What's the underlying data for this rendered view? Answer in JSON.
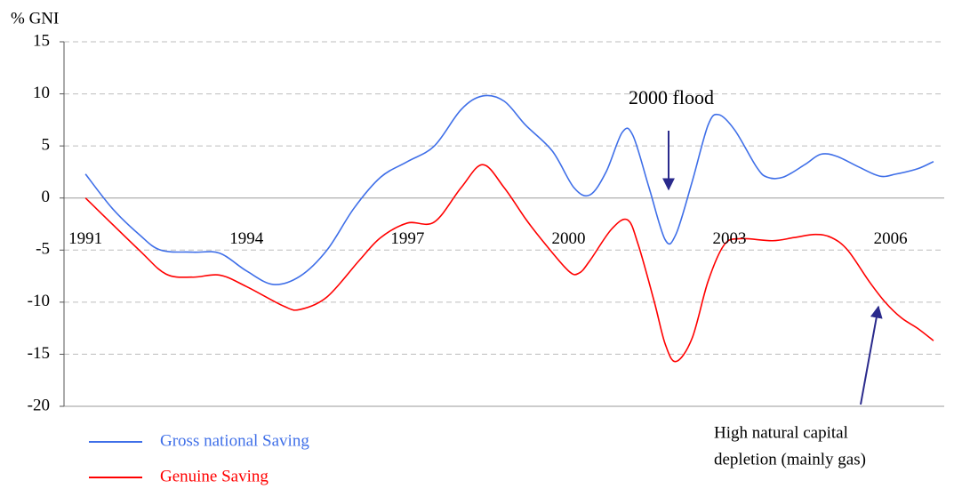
{
  "chart_data": {
    "type": "line",
    "y_label": "% GNI",
    "xlim": [
      1990.6,
      2007
    ],
    "xticks": [
      1991,
      1994,
      1997,
      2000,
      2003,
      2006
    ],
    "ylim": [
      -20,
      15
    ],
    "yticks": [
      -20,
      -15,
      -10,
      -5,
      0,
      5,
      10,
      15
    ],
    "grid": true,
    "series": [
      {
        "name": "Gross national Saving",
        "color": "#3f6fe8",
        "x": [
          1991,
          1991.5,
          1992,
          1992.4,
          1993,
          1993.5,
          1994,
          1994.5,
          1995,
          1995.5,
          1996,
          1996.5,
          1997,
          1997.5,
          1998,
          1998.4,
          1998.8,
          1999.2,
          1999.7,
          2000.1,
          2000.4,
          2000.7,
          2001.0,
          2001.2,
          2001.5,
          2001.8,
          2002.0,
          2002.3,
          2002.6,
          2002.8,
          2003.1,
          2003.5,
          2003.7,
          2004.0,
          2004.4,
          2004.7,
          2005.0,
          2005.4,
          2005.8,
          2006.1,
          2006.5,
          2006.8
        ],
        "values": [
          2.3,
          -1.0,
          -3.5,
          -5.0,
          -5.2,
          -5.3,
          -7.0,
          -8.3,
          -7.5,
          -5.0,
          -1.0,
          2.0,
          3.5,
          5.0,
          8.5,
          9.8,
          9.3,
          7.0,
          4.5,
          1.0,
          0.3,
          2.5,
          6.3,
          6.0,
          1.0,
          -4.0,
          -3.5,
          1.5,
          7.0,
          8.0,
          6.5,
          3.0,
          2.0,
          2.0,
          3.2,
          4.2,
          4.0,
          3.0,
          2.1,
          2.3,
          2.8,
          3.5
        ]
      },
      {
        "name": "Genuine Saving",
        "color": "#ff0000",
        "x": [
          1991,
          1992,
          1992.5,
          1993,
          1993.5,
          1994,
          1994.7,
          1995,
          1995.5,
          1996.1,
          1996.5,
          1997,
          1997.5,
          1998.0,
          1998.4,
          1998.8,
          1999.2,
          1999.5,
          2000.0,
          2000.2,
          2000.4,
          2000.8,
          2001.1,
          2001.3,
          2001.6,
          2001.8,
          2002.0,
          2002.3,
          2002.6,
          2002.9,
          2003.2,
          2003.8,
          2004.2,
          2004.6,
          2004.9,
          2005.2,
          2005.6,
          2005.9,
          2006.2,
          2006.5,
          2006.8
        ],
        "values": [
          0,
          -5.0,
          -7.3,
          -7.6,
          -7.4,
          -8.5,
          -10.4,
          -10.7,
          -9.5,
          -6.0,
          -3.8,
          -2.4,
          -2.3,
          1.0,
          3.2,
          1.0,
          -2.0,
          -4.0,
          -7.0,
          -7.2,
          -6.0,
          -3.0,
          -2.1,
          -4.5,
          -10.0,
          -14.0,
          -15.7,
          -13.5,
          -8.0,
          -4.5,
          -3.9,
          -4.1,
          -3.8,
          -3.5,
          -3.8,
          -5.0,
          -8.0,
          -10.0,
          -11.5,
          -12.5,
          -13.7
        ]
      }
    ],
    "annotations": [
      {
        "lines": [
          "2000 flood"
        ]
      },
      {
        "lines": [
          "High natural capital",
          "depletion (mainly gas)"
        ]
      }
    ]
  }
}
